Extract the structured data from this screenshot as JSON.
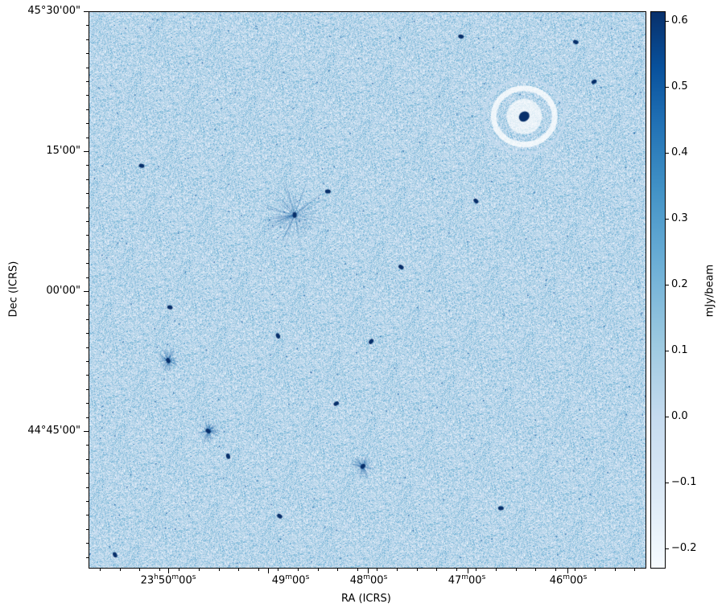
{
  "chart_data": {
    "type": "heatmap",
    "title": "",
    "xlabel": "RA (ICRS)",
    "ylabel": "Dec (ICRS)",
    "colormap": "Blues",
    "x_ticks": [
      {
        "h": "23",
        "m": "50",
        "s": "00",
        "ra": "23:50:00"
      },
      {
        "m": "49",
        "s": "00",
        "ra": "23:49:00"
      },
      {
        "m": "48",
        "s": "00",
        "ra": "23:48:00"
      },
      {
        "m": "47",
        "s": "00",
        "ra": "23:47:00"
      },
      {
        "m": "46",
        "s": "00",
        "ra": "23:46:00"
      }
    ],
    "y_ticks": [
      {
        "label": "45°30'00\"",
        "dec": 45.5
      },
      {
        "label": "15'00\"",
        "dec": 45.25
      },
      {
        "label": "00'00\"",
        "dec": 45.0
      },
      {
        "label": "44°45'00\"",
        "dec": 44.75
      }
    ],
    "colorbar": {
      "label": "mJy/beam",
      "range": [
        -0.23,
        0.615
      ],
      "ticks": [
        "0.6",
        "0.5",
        "0.4",
        "0.3",
        "0.2",
        "0.1",
        "0.0",
        "−0.1",
        "−0.2"
      ],
      "tick_values": [
        0.6,
        0.5,
        0.4,
        0.3,
        0.2,
        0.1,
        0.0,
        -0.1,
        -0.2
      ]
    },
    "sources": [
      {
        "ra": "23:48:44",
        "dec": 45.136,
        "kind": "bright-star-artifacts"
      },
      {
        "ra": "23:46:26",
        "dec": 45.312,
        "kind": "bright-ring"
      },
      {
        "ra": "23:47:58",
        "dec": 44.91
      },
      {
        "ra": "23:49:36",
        "dec": 44.75,
        "kind": "star-artifacts"
      },
      {
        "ra": "23:50:00",
        "dec": 44.876,
        "kind": "star-artifacts"
      },
      {
        "ra": "23:48:03",
        "dec": 44.687,
        "kind": "star-artifacts"
      },
      {
        "ra": "23:50:16",
        "dec": 45.224
      },
      {
        "ra": "23:47:04",
        "dec": 45.455
      },
      {
        "ra": "23:45:55",
        "dec": 45.445
      },
      {
        "ra": "23:45:44",
        "dec": 45.374
      },
      {
        "ra": "23:48:24",
        "dec": 45.178
      },
      {
        "ra": "23:47:40",
        "dec": 45.043
      },
      {
        "ra": "23:49:59",
        "dec": 44.971
      },
      {
        "ra": "23:48:53",
        "dec": 44.598
      },
      {
        "ra": "23:49:24",
        "dec": 44.705
      },
      {
        "ra": "23:48:19",
        "dec": 44.799
      },
      {
        "ra": "23:46:40",
        "dec": 44.612
      },
      {
        "ra": "23:50:32",
        "dec": 44.529
      },
      {
        "ra": "23:48:54",
        "dec": 44.92
      },
      {
        "ra": "23:46:55",
        "dec": 45.161
      }
    ]
  }
}
